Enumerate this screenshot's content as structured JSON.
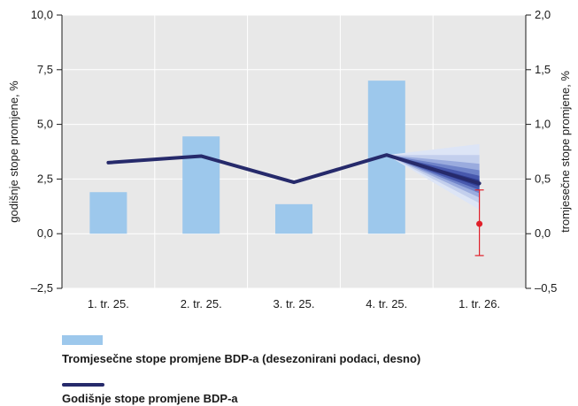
{
  "chart_data": {
    "type": "bar",
    "categories": [
      "1. tr. 25.",
      "2. tr. 25.",
      "3. tr. 25.",
      "4. tr. 25.",
      "1. tr. 26."
    ],
    "ylabel_left": "godišnje stope promjene, %",
    "ylabel_right": "tromjesečne stope promjene, %",
    "ylim_left": [
      -2.5,
      10.0
    ],
    "ylim_right": [
      -0.5,
      2.0
    ],
    "yticks_left": [
      "–2,5",
      "0,0",
      "2,5",
      "5,0",
      "7,5",
      "10,0"
    ],
    "yticks_right": [
      "–0,5",
      "0,0",
      "0,5",
      "1,0",
      "1,5",
      "2,0"
    ],
    "grid": true,
    "series": [
      {
        "name": "Tromjesečne stope promjene BDP-a (desezonirani podaci, desno)",
        "type": "bar",
        "axis": "right",
        "color": "#9dc8ec",
        "values": [
          0.38,
          0.89,
          0.27,
          1.4,
          null
        ]
      },
      {
        "name": "Godišnje stope promjene BDP-a",
        "type": "line",
        "axis": "left",
        "color": "#262a6b",
        "values": [
          3.25,
          3.55,
          2.35,
          3.6,
          2.3
        ]
      }
    ],
    "fan_chart": {
      "from_category": "4. tr. 25.",
      "to_category": "1. tr. 26.",
      "start_value": 3.6,
      "central": 2.3,
      "bands": [
        {
          "low": 1.1,
          "high": 4.1,
          "color": "#dde5f6"
        },
        {
          "low": 1.4,
          "high": 3.6,
          "color": "#c3cfed"
        },
        {
          "low": 1.65,
          "high": 3.2,
          "color": "#9aabde"
        },
        {
          "low": 1.85,
          "high": 2.9,
          "color": "#6f83c9"
        },
        {
          "low": 2.0,
          "high": 2.65,
          "color": "#4758ad"
        },
        {
          "low": 2.15,
          "high": 2.45,
          "color": "#2e3b8f"
        }
      ]
    },
    "point_estimate": {
      "category": "1. tr. 26.",
      "axis": "right",
      "value": 0.09,
      "err_low": -0.2,
      "err_high": 0.4,
      "color": "#e0202a"
    }
  },
  "legend": {
    "bar_label": "Tromjesečne stope promjene BDP-a (desezonirani podaci, desno)",
    "line_label": "Godišnje stope promjene BDP-a"
  }
}
